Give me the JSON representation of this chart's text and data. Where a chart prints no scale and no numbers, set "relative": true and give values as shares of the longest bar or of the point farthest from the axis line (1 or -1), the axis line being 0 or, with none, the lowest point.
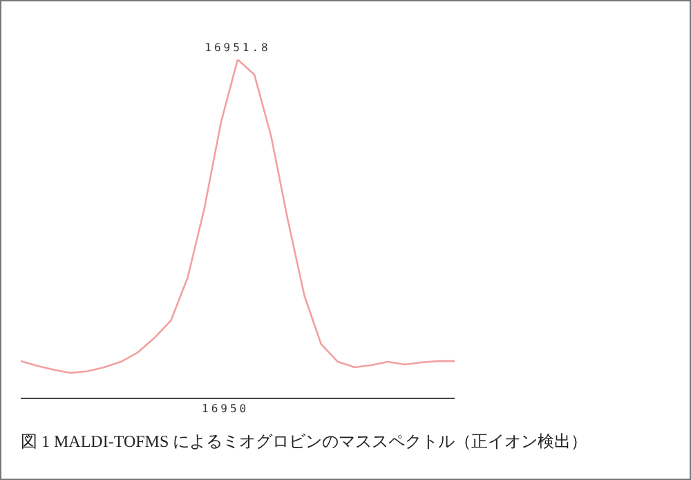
{
  "chart_data": {
    "type": "line",
    "relative": true,
    "categories": [
      null,
      null,
      null,
      null,
      null,
      null,
      null,
      null,
      null,
      null,
      null,
      null,
      null,
      null,
      null,
      null,
      null,
      null,
      null,
      null,
      null,
      null,
      null,
      null,
      null,
      null,
      null
    ],
    "series": [
      {
        "color": "#f2a0a0",
        "values": [
          0.11,
          0.096,
          0.084,
          0.075,
          0.08,
          0.092,
          0.108,
          0.135,
          0.178,
          0.23,
          0.356,
          0.56,
          0.815,
          1,
          0.955,
          0.774,
          0.527,
          0.302,
          0.16,
          0.108,
          0.092,
          0.098,
          0.108,
          0.1,
          0.106,
          0.11,
          0.11
        ]
      }
    ],
    "annotations": [
      {
        "text": "16951.8",
        "y": 1
      },
      "16950",
      "図 1 MALDI-TOFMS によるミオグロビンのマススペクトル（正イオン検出）"
    ]
  }
}
